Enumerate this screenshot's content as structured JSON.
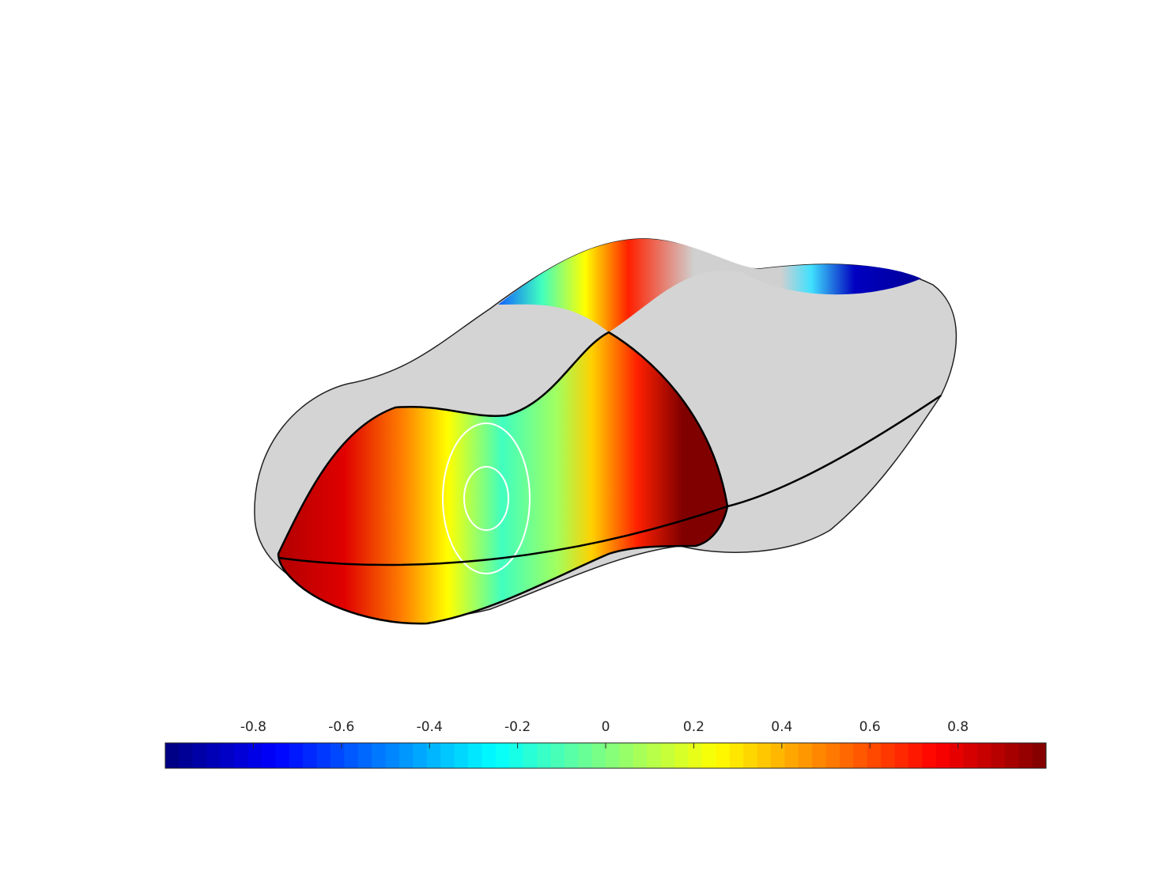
{
  "chart_data": {
    "type": "surface",
    "colormap": "jet",
    "colormap_levels": 64,
    "colorbar_location": "south",
    "xlim": [
      -1,
      1
    ],
    "xticks": [
      -0.8,
      -0.6,
      -0.4,
      -0.2,
      0,
      0.2,
      0.4,
      0.6,
      0.8
    ]
  }
}
